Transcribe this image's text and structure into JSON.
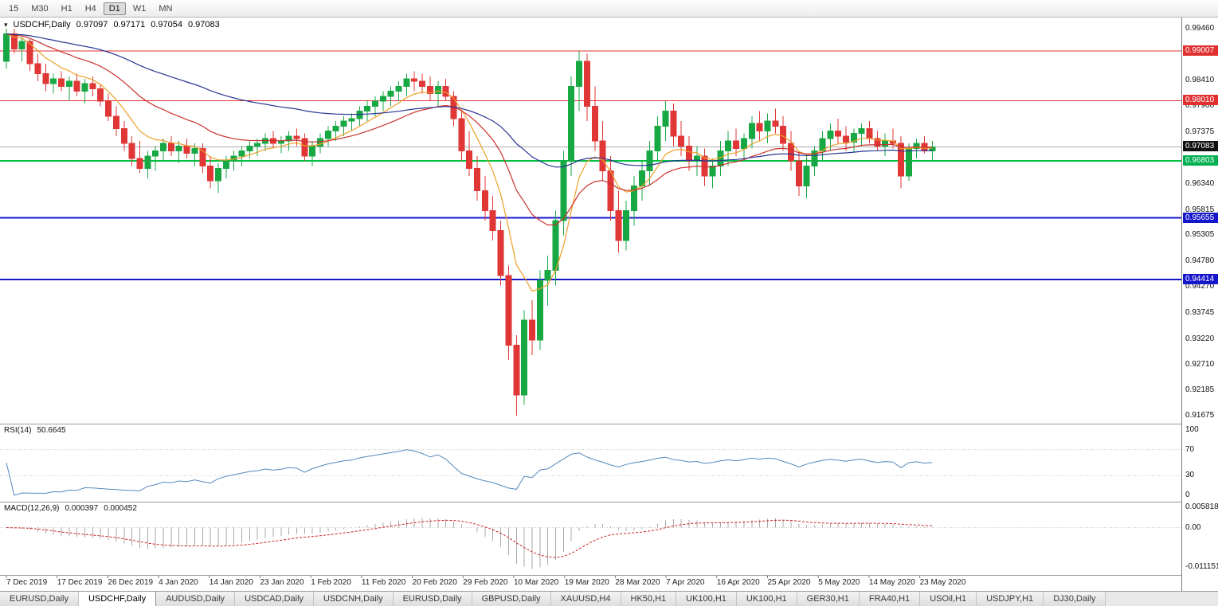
{
  "toolbar": {
    "timeframes": [
      "15",
      "M30",
      "H1",
      "H4",
      "D1",
      "W1",
      "MN"
    ],
    "active": "D1"
  },
  "header": {
    "symbol": "USDCHF,Daily",
    "open": "0.97097",
    "high": "0.97171",
    "low": "0.97054",
    "close": "0.97083"
  },
  "chart_data": {
    "type": "candlestick",
    "symbol": "USDCHF",
    "timeframe": "Daily",
    "ylim": [
      0.9152,
      0.9968
    ],
    "colors": {
      "bull": "#18a843",
      "bear": "#e03636",
      "ma_fast": "#ef9f28",
      "ma_mid": "#c8312e",
      "ma_slow": "#283593",
      "rsi_line": "#5588bb",
      "macd_hist": "#a8a8a8",
      "macd_signal": "#cc2222",
      "level_red": "#e03030",
      "level_green": "#00c040",
      "level_blue": "#1515cc",
      "current_price_line": "#aaaaaa"
    },
    "hlines": [
      {
        "price": 0.99007,
        "color": "#e03030",
        "width": 1
      },
      {
        "price": 0.9801,
        "color": "#e03030",
        "width": 1
      },
      {
        "price": 0.96803,
        "color": "#00c040",
        "width": 2
      },
      {
        "price": 0.95655,
        "color": "#1515cc",
        "width": 2
      },
      {
        "price": 0.94414,
        "color": "#1515cc",
        "width": 2
      }
    ],
    "current_price": 0.97083,
    "price_axis": {
      "ticks": [
        "0.99460",
        "0.98410",
        "0.97900",
        "0.97375",
        "0.96340",
        "0.95815",
        "0.95305",
        "0.94780",
        "0.94270",
        "0.93745",
        "0.93220",
        "0.92710",
        "0.92185",
        "0.91675"
      ],
      "badges": [
        {
          "text": "0.99007",
          "color": "#e03030"
        },
        {
          "text": "0.98010",
          "color": "#e03030"
        },
        {
          "text": "0.97083",
          "color": "#111111"
        },
        {
          "text": "0.96803",
          "color": "#00b050"
        },
        {
          "text": "0.95655",
          "color": "#1515cc"
        },
        {
          "text": "0.94414",
          "color": "#1515cc"
        }
      ]
    },
    "time_labels": [
      "7 Dec 2019",
      "17 Dec 2019",
      "26 Dec 2019",
      "4 Jan 2020",
      "14 Jan 2020",
      "23 Jan 2020",
      "1 Feb 2020",
      "11 Feb 2020",
      "20 Feb 2020",
      "29 Feb 2020",
      "10 Mar 2020",
      "19 Mar 2020",
      "28 Mar 2020",
      "7 Apr 2020",
      "16 Apr 2020",
      "25 Apr 2020",
      "5 May 2020",
      "14 May 2020",
      "23 May 2020"
    ],
    "moving_averages": [
      {
        "period": 8,
        "color": "#ef9f28"
      },
      {
        "period": 21,
        "color": "#c8312e"
      },
      {
        "period": 55,
        "color": "#283593"
      }
    ],
    "rsi": {
      "label": "RSI(14)",
      "value": "50.6645",
      "period": 14,
      "levels": [
        70,
        30
      ],
      "axis": [
        "100",
        "70",
        "30",
        "0"
      ]
    },
    "macd": {
      "label": "MACD(12,26,9)",
      "value_main": "0.000397",
      "value_signal": "0.000452",
      "fast": 12,
      "slow": 26,
      "signal": 9,
      "axis": [
        {
          "text": "0.005818",
          "value": 0.005818
        },
        {
          "text": "0.00",
          "value": 0
        },
        {
          "text": "-0.011151",
          "value": -0.011151
        }
      ]
    },
    "ohlc": [
      [
        0.988,
        0.9946,
        0.9865,
        0.9935
      ],
      [
        0.9935,
        0.9945,
        0.9895,
        0.9905
      ],
      [
        0.9905,
        0.993,
        0.988,
        0.992
      ],
      [
        0.992,
        0.9925,
        0.986,
        0.9875
      ],
      [
        0.9875,
        0.9895,
        0.984,
        0.9855
      ],
      [
        0.9855,
        0.9875,
        0.982,
        0.9835
      ],
      [
        0.9835,
        0.9855,
        0.9815,
        0.9845
      ],
      [
        0.9845,
        0.986,
        0.982,
        0.983
      ],
      [
        0.983,
        0.985,
        0.98,
        0.984
      ],
      [
        0.984,
        0.9855,
        0.981,
        0.982
      ],
      [
        0.982,
        0.9845,
        0.9795,
        0.9835
      ],
      [
        0.9835,
        0.985,
        0.981,
        0.9825
      ],
      [
        0.9825,
        0.9835,
        0.979,
        0.98
      ],
      [
        0.98,
        0.9815,
        0.976,
        0.977
      ],
      [
        0.977,
        0.979,
        0.973,
        0.9745
      ],
      [
        0.9745,
        0.976,
        0.97,
        0.9715
      ],
      [
        0.9715,
        0.973,
        0.967,
        0.9685
      ],
      [
        0.9685,
        0.972,
        0.9655,
        0.9665
      ],
      [
        0.9665,
        0.97,
        0.9645,
        0.969
      ],
      [
        0.969,
        0.971,
        0.966,
        0.97
      ],
      [
        0.97,
        0.9725,
        0.968,
        0.9715
      ],
      [
        0.9715,
        0.973,
        0.969,
        0.97
      ],
      [
        0.97,
        0.972,
        0.9675,
        0.971
      ],
      [
        0.971,
        0.9725,
        0.9685,
        0.9695
      ],
      [
        0.9695,
        0.9715,
        0.967,
        0.9705
      ],
      [
        0.9705,
        0.9715,
        0.9655,
        0.967
      ],
      [
        0.967,
        0.969,
        0.9625,
        0.964
      ],
      [
        0.964,
        0.9675,
        0.9615,
        0.9665
      ],
      [
        0.9665,
        0.969,
        0.9645,
        0.968
      ],
      [
        0.968,
        0.97,
        0.966,
        0.969
      ],
      [
        0.969,
        0.971,
        0.967,
        0.97
      ],
      [
        0.97,
        0.972,
        0.9685,
        0.971
      ],
      [
        0.971,
        0.9725,
        0.969,
        0.9715
      ],
      [
        0.9715,
        0.9735,
        0.97,
        0.9725
      ],
      [
        0.9725,
        0.974,
        0.9705,
        0.9715
      ],
      [
        0.9715,
        0.973,
        0.9695,
        0.972
      ],
      [
        0.972,
        0.974,
        0.97,
        0.973
      ],
      [
        0.973,
        0.9745,
        0.971,
        0.9725
      ],
      [
        0.9725,
        0.9735,
        0.968,
        0.969
      ],
      [
        0.969,
        0.972,
        0.967,
        0.971
      ],
      [
        0.971,
        0.9735,
        0.9695,
        0.9725
      ],
      [
        0.9725,
        0.975,
        0.971,
        0.974
      ],
      [
        0.974,
        0.976,
        0.972,
        0.975
      ],
      [
        0.975,
        0.977,
        0.973,
        0.976
      ],
      [
        0.976,
        0.9775,
        0.974,
        0.9765
      ],
      [
        0.9765,
        0.979,
        0.975,
        0.978
      ],
      [
        0.978,
        0.98,
        0.976,
        0.979
      ],
      [
        0.979,
        0.981,
        0.977,
        0.98
      ],
      [
        0.98,
        0.982,
        0.978,
        0.981
      ],
      [
        0.981,
        0.983,
        0.979,
        0.982
      ],
      [
        0.982,
        0.984,
        0.98,
        0.983
      ],
      [
        0.983,
        0.9855,
        0.981,
        0.9845
      ],
      [
        0.9845,
        0.986,
        0.982,
        0.984
      ],
      [
        0.984,
        0.9855,
        0.9815,
        0.983
      ],
      [
        0.983,
        0.985,
        0.98,
        0.9815
      ],
      [
        0.9815,
        0.984,
        0.979,
        0.983
      ],
      [
        0.983,
        0.9845,
        0.98,
        0.981
      ],
      [
        0.981,
        0.982,
        0.975,
        0.9765
      ],
      [
        0.9765,
        0.978,
        0.968,
        0.97
      ],
      [
        0.97,
        0.974,
        0.965,
        0.9665
      ],
      [
        0.9665,
        0.969,
        0.96,
        0.962
      ],
      [
        0.962,
        0.965,
        0.956,
        0.958
      ],
      [
        0.958,
        0.961,
        0.952,
        0.954
      ],
      [
        0.954,
        0.956,
        0.943,
        0.945
      ],
      [
        0.945,
        0.947,
        0.928,
        0.931
      ],
      [
        0.931,
        0.933,
        0.9168,
        0.921
      ],
      [
        0.921,
        0.938,
        0.919,
        0.936
      ],
      [
        0.936,
        0.94,
        0.929,
        0.932
      ],
      [
        0.932,
        0.946,
        0.93,
        0.944
      ],
      [
        0.944,
        0.949,
        0.939,
        0.946
      ],
      [
        0.946,
        0.958,
        0.943,
        0.956
      ],
      [
        0.956,
        0.97,
        0.953,
        0.968
      ],
      [
        0.968,
        0.985,
        0.965,
        0.983
      ],
      [
        0.983,
        0.99,
        0.978,
        0.988
      ],
      [
        0.988,
        0.9895,
        0.976,
        0.979
      ],
      [
        0.979,
        0.983,
        0.97,
        0.972
      ],
      [
        0.972,
        0.976,
        0.964,
        0.966
      ],
      [
        0.966,
        0.969,
        0.956,
        0.958
      ],
      [
        0.958,
        0.962,
        0.9495,
        0.952
      ],
      [
        0.952,
        0.96,
        0.95,
        0.958
      ],
      [
        0.958,
        0.965,
        0.955,
        0.963
      ],
      [
        0.963,
        0.968,
        0.96,
        0.966
      ],
      [
        0.966,
        0.972,
        0.963,
        0.97
      ],
      [
        0.97,
        0.977,
        0.968,
        0.975
      ],
      [
        0.975,
        0.98,
        0.972,
        0.978
      ],
      [
        0.978,
        0.9795,
        0.971,
        0.973
      ],
      [
        0.973,
        0.976,
        0.969,
        0.971
      ],
      [
        0.971,
        0.973,
        0.966,
        0.968
      ],
      [
        0.968,
        0.971,
        0.965,
        0.969
      ],
      [
        0.969,
        0.9705,
        0.963,
        0.965
      ],
      [
        0.965,
        0.9685,
        0.9625,
        0.967
      ],
      [
        0.967,
        0.972,
        0.965,
        0.97
      ],
      [
        0.97,
        0.974,
        0.967,
        0.972
      ],
      [
        0.972,
        0.9745,
        0.969,
        0.9705
      ],
      [
        0.9705,
        0.9735,
        0.9685,
        0.9725
      ],
      [
        0.9725,
        0.977,
        0.9705,
        0.9755
      ],
      [
        0.9755,
        0.978,
        0.972,
        0.974
      ],
      [
        0.974,
        0.9775,
        0.9715,
        0.976
      ],
      [
        0.976,
        0.9785,
        0.9735,
        0.975
      ],
      [
        0.975,
        0.977,
        0.97,
        0.9715
      ],
      [
        0.9715,
        0.974,
        0.966,
        0.968
      ],
      [
        0.968,
        0.97,
        0.961,
        0.963
      ],
      [
        0.963,
        0.969,
        0.9605,
        0.967
      ],
      [
        0.967,
        0.971,
        0.965,
        0.97
      ],
      [
        0.97,
        0.974,
        0.968,
        0.9725
      ],
      [
        0.9725,
        0.9755,
        0.97,
        0.974
      ],
      [
        0.974,
        0.9765,
        0.9715,
        0.973
      ],
      [
        0.973,
        0.975,
        0.97,
        0.9718
      ],
      [
        0.9718,
        0.9745,
        0.9698,
        0.9735
      ],
      [
        0.9735,
        0.9755,
        0.971,
        0.9745
      ],
      [
        0.9745,
        0.976,
        0.9715,
        0.9725
      ],
      [
        0.9725,
        0.974,
        0.97,
        0.971
      ],
      [
        0.971,
        0.9735,
        0.969,
        0.972
      ],
      [
        0.972,
        0.9745,
        0.9705,
        0.9715
      ],
      [
        0.9715,
        0.973,
        0.9625,
        0.965
      ],
      [
        0.965,
        0.9715,
        0.964,
        0.9705
      ],
      [
        0.9705,
        0.9725,
        0.9685,
        0.9715
      ],
      [
        0.9715,
        0.973,
        0.9695,
        0.97
      ],
      [
        0.97,
        0.972,
        0.968,
        0.9708
      ]
    ]
  },
  "tabs": {
    "active_index": 1,
    "items": [
      "EURUSD,Daily",
      "USDCHF,Daily",
      "AUDUSD,Daily",
      "USDCAD,Daily",
      "USDCNH,Daily",
      "EURUSD,Daily",
      "GBPUSD,Daily",
      "XAUUSD,H4",
      "HK50,H1",
      "UK100,H1",
      "UK100,H1",
      "GER30,H1",
      "FRA40,H1",
      "USOil,H1",
      "USDJPY,H1",
      "DJ30,Daily"
    ]
  }
}
